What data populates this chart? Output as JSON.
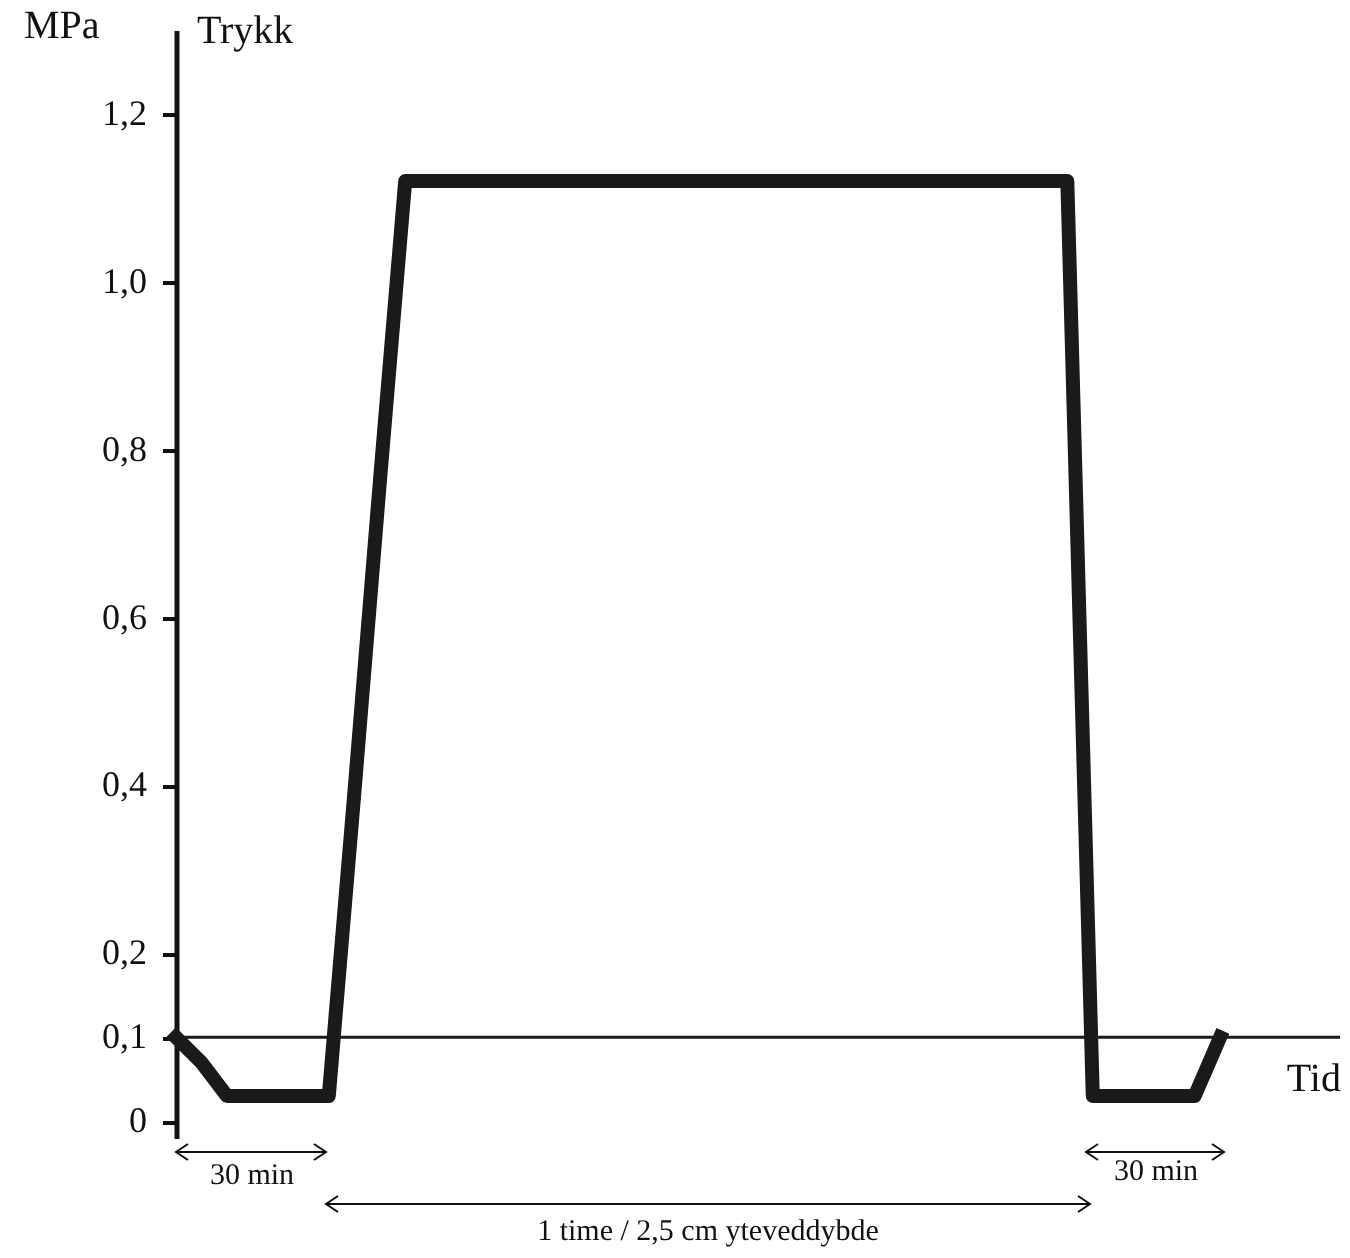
{
  "chart_data": {
    "type": "line",
    "ylabel": "Trykk",
    "xlabel": "Tid",
    "categories": [
      null,
      null,
      null,
      null,
      null,
      null,
      null,
      null,
      null,
      null,
      null,
      null,
      null,
      null,
      null,
      null,
      null,
      null,
      null,
      null,
      null,
      null,
      null,
      null,
      null,
      null,
      null,
      null,
      null,
      null,
      null,
      null,
      null,
      null,
      null,
      null,
      null,
      null,
      null,
      null,
      null,
      null
    ],
    "series": [
      {
        "color": "#1a1a1a",
        "values": [
          0.1,
          0.07,
          0.03,
          0.03,
          0.03,
          0.03,
          0.03,
          0.39,
          0.76,
          1.12,
          1.12,
          1.12,
          1.12,
          1.12,
          1.12,
          1.12,
          1.12,
          1.12,
          1.12,
          1.12,
          1.12,
          1.12,
          1.12,
          1.12,
          1.12,
          1.12,
          1.12,
          1.12,
          1.12,
          1.12,
          1.12,
          1.12,
          1.12,
          1.12,
          1.12,
          1.12,
          0.03,
          0.03,
          0.03,
          0.03,
          0.03,
          0.1
        ]
      }
    ],
    "ylim": [
      -0.02,
      1.3
    ],
    "yticks": [
      0,
      {
        "value": 0.1,
        "label": "0,1"
      },
      {
        "value": 0.2,
        "label": "0,2"
      },
      {
        "value": 0.4,
        "label": "0,4"
      },
      {
        "value": 0.6,
        "label": "0,6"
      },
      {
        "value": 0.8,
        "label": "0,8"
      },
      {
        "value": 1.0,
        "label": "1,0"
      },
      {
        "value": 1.2,
        "label": "1,2"
      }
    ],
    "ref_lines": [
      {
        "axis": "y",
        "value": 0.1,
        "color": "#1a1a1a"
      }
    ],
    "annotations": [
      "MPa",
      "30 min",
      "30 min",
      "1 time / 2,5 cm yteveddybde"
    ],
    "tick_labels": "y",
    "grid": false,
    "marker": "none",
    "line_style": "solid"
  }
}
